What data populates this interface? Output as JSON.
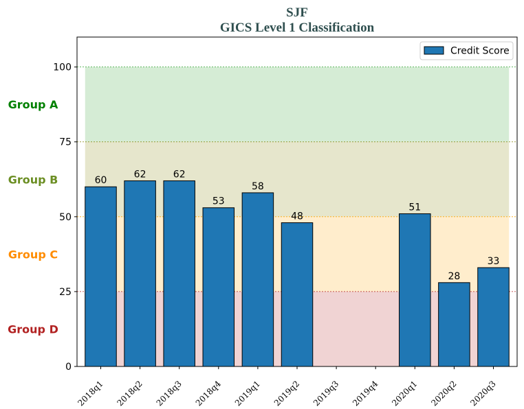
{
  "chart_data": {
    "type": "bar",
    "title": "SJF",
    "subtitle": "GICS Level 1 Classification",
    "categories": [
      "2018q1",
      "2018q2",
      "2018q3",
      "2018q4",
      "2019q1",
      "2019q2",
      "2019q3",
      "2019q4",
      "2020q1",
      "2020q2",
      "2020q3"
    ],
    "series": [
      {
        "name": "Credit Score",
        "values": [
          60,
          62,
          62,
          53,
          58,
          48,
          null,
          null,
          51,
          28,
          33
        ],
        "color": "#1f77b4"
      }
    ],
    "ylim": [
      0,
      110
    ],
    "yticks": [
      0,
      25,
      50,
      75,
      100
    ],
    "xlabel": "",
    "ylabel": "",
    "legend_position": "top-right",
    "grid": false,
    "bands": [
      {
        "label": "Group A",
        "from": 75,
        "to": 100,
        "color": "#2ca02c",
        "text_color": "#008000"
      },
      {
        "label": "Group B",
        "from": 50,
        "to": 75,
        "color": "#808000",
        "text_color": "#6b8e23"
      },
      {
        "label": "Group C",
        "from": 25,
        "to": 50,
        "color": "#ffa500",
        "text_color": "#ff8c00"
      },
      {
        "label": "Group D",
        "from": 0,
        "to": 25,
        "color": "#b22222",
        "text_color": "#b22222"
      }
    ]
  }
}
